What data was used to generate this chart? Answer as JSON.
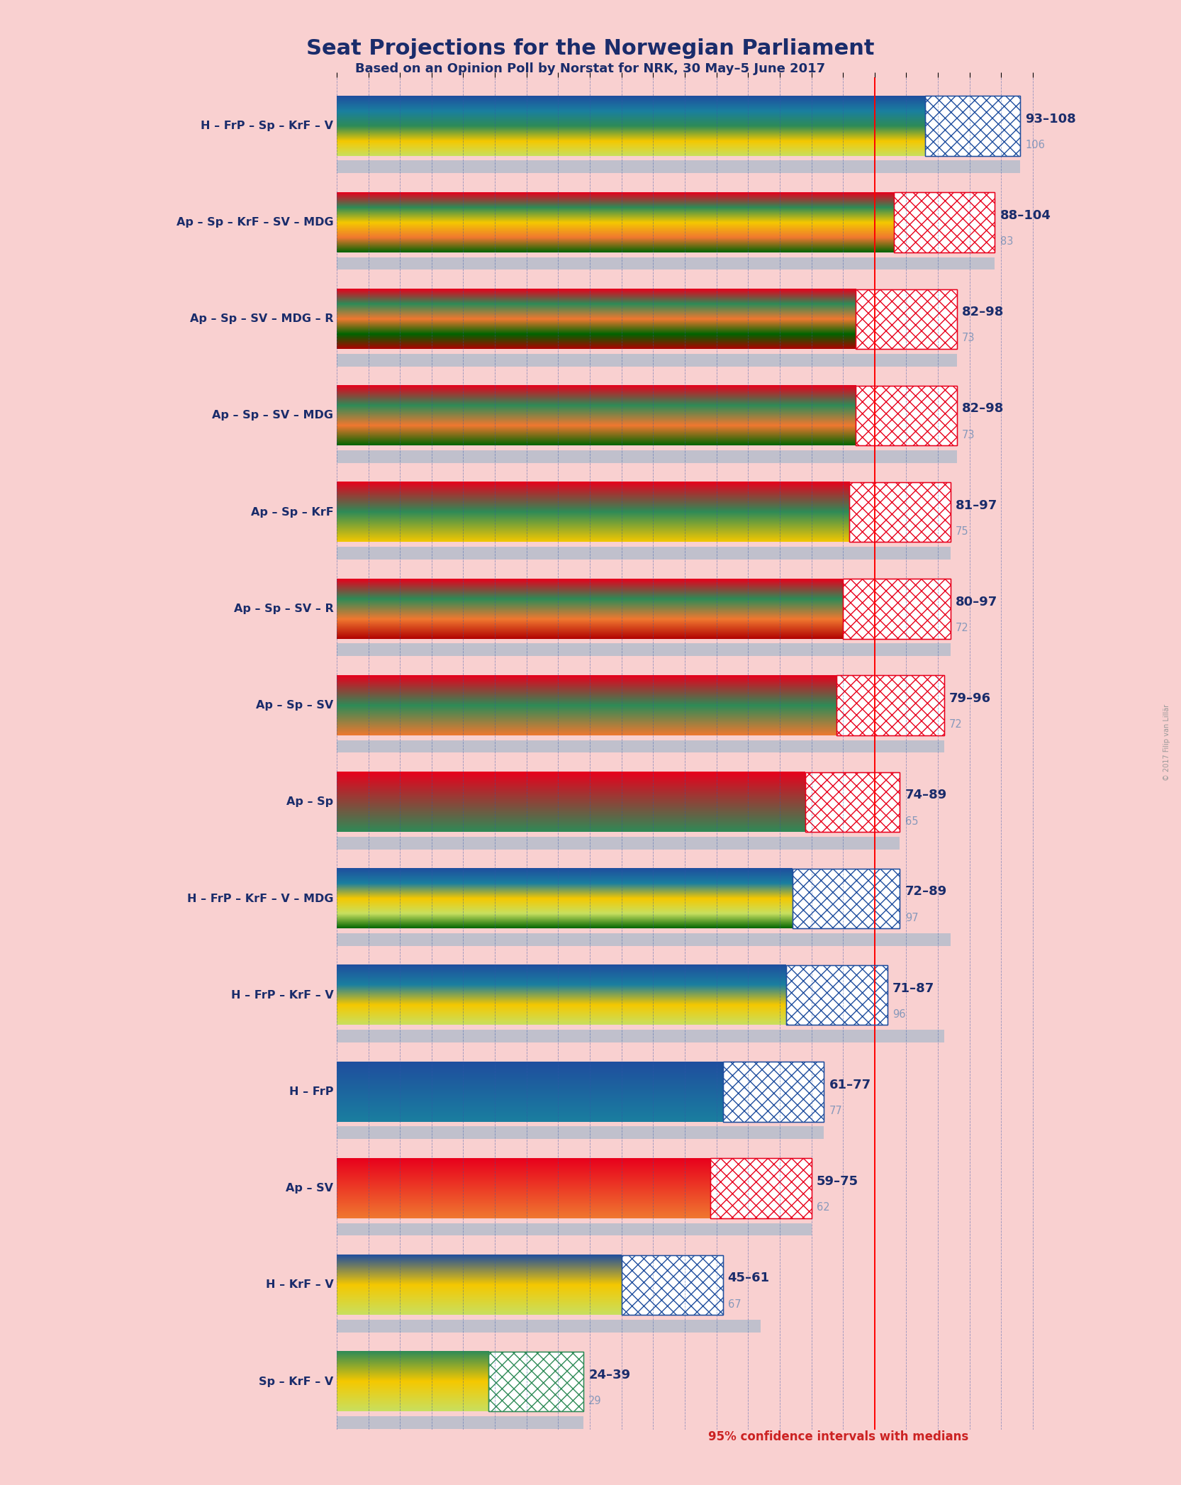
{
  "title": "Seat Projections for the Norwegian Parliament",
  "subtitle": "Based on an Opinion Poll by Norstat for NRK, 30 May–5 June 2017",
  "copyright": "© 2017 Filip van Lillär",
  "footnote": "95% confidence intervals with medians",
  "background_color": "#f9d0d0",
  "title_color": "#1a2c6b",
  "coalitions": [
    {
      "name": "H – FrP – Sp – KrF – V",
      "ci_low": 93,
      "ci_high": 108,
      "median": 106,
      "parties": [
        "H",
        "FrP",
        "Sp",
        "KrF",
        "V"
      ]
    },
    {
      "name": "Ap – Sp – KrF – SV – MDG",
      "ci_low": 88,
      "ci_high": 104,
      "median": 83,
      "parties": [
        "Ap",
        "Sp",
        "KrF",
        "SV",
        "MDG"
      ]
    },
    {
      "name": "Ap – Sp – SV – MDG – R",
      "ci_low": 82,
      "ci_high": 98,
      "median": 73,
      "parties": [
        "Ap",
        "Sp",
        "SV",
        "MDG",
        "R"
      ]
    },
    {
      "name": "Ap – Sp – SV – MDG",
      "ci_low": 82,
      "ci_high": 98,
      "median": 73,
      "parties": [
        "Ap",
        "Sp",
        "SV",
        "MDG"
      ]
    },
    {
      "name": "Ap – Sp – KrF",
      "ci_low": 81,
      "ci_high": 97,
      "median": 75,
      "parties": [
        "Ap",
        "Sp",
        "KrF"
      ]
    },
    {
      "name": "Ap – Sp – SV – R",
      "ci_low": 80,
      "ci_high": 97,
      "median": 72,
      "parties": [
        "Ap",
        "Sp",
        "SV",
        "R"
      ]
    },
    {
      "name": "Ap – Sp – SV",
      "ci_low": 79,
      "ci_high": 96,
      "median": 72,
      "parties": [
        "Ap",
        "Sp",
        "SV"
      ]
    },
    {
      "name": "Ap – Sp",
      "ci_low": 74,
      "ci_high": 89,
      "median": 65,
      "parties": [
        "Ap",
        "Sp"
      ]
    },
    {
      "name": "H – FrP – KrF – V – MDG",
      "ci_low": 72,
      "ci_high": 89,
      "median": 97,
      "parties": [
        "H",
        "FrP",
        "KrF",
        "V",
        "MDG"
      ]
    },
    {
      "name": "H – FrP – KrF – V",
      "ci_low": 71,
      "ci_high": 87,
      "median": 96,
      "parties": [
        "H",
        "FrP",
        "KrF",
        "V"
      ]
    },
    {
      "name": "H – FrP",
      "ci_low": 61,
      "ci_high": 77,
      "median": 77,
      "parties": [
        "H",
        "FrP"
      ]
    },
    {
      "name": "Ap – SV",
      "ci_low": 59,
      "ci_high": 75,
      "median": 62,
      "parties": [
        "Ap",
        "SV"
      ]
    },
    {
      "name": "H – KrF – V",
      "ci_low": 45,
      "ci_high": 61,
      "median": 67,
      "parties": [
        "H",
        "KrF",
        "V"
      ]
    },
    {
      "name": "Sp – KrF – V",
      "ci_low": 24,
      "ci_high": 39,
      "median": 29,
      "parties": [
        "Sp",
        "KrF",
        "V"
      ]
    }
  ],
  "x_max": 110,
  "majority": 85,
  "party_colors": {
    "H": "#1f4e9e",
    "FrP": "#1a7fa0",
    "Sp": "#2e8b57",
    "KrF": "#f5c800",
    "V": "#c8e060",
    "Ap": "#e8001c",
    "SV": "#f07830",
    "MDG": "#006400",
    "R": "#b00000"
  }
}
